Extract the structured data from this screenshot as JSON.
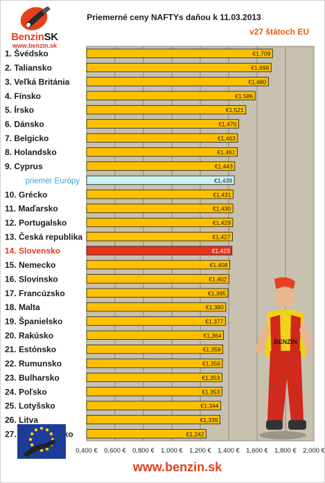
{
  "header": {
    "logo_name_a": "Benzin",
    "logo_name_b": "SK",
    "logo_url": "www.benzin.sk",
    "title": "Priemerné ceny NAFTYs daňou k 11.03.2013",
    "subtitle": "v27 štátoch EU"
  },
  "footer": {
    "url": "www.benzin.sk"
  },
  "colors": {
    "bar": "#ffc000",
    "average_bar": "#ccf2f2",
    "highlight_bar": "#e8341c",
    "plot_bg": "#c8c1b0",
    "average_label": "#3aa0d8",
    "highlight_label": "#e8341c"
  },
  "icons": {
    "flag": "eu-flag-fuel-nozzle-icon",
    "mascot": "mechanic-mascot-icon"
  },
  "chart_data": {
    "type": "bar",
    "orientation": "horizontal",
    "title": "Priemerné ceny NAFTYs daňou k 11.03.2013",
    "subtitle": "v27 štátoch EU",
    "categories": [
      "1. Švédsko",
      "2. Taliansko",
      "3. Veľká Británia",
      "4. Fínsko",
      "5. Írsko",
      "6. Dánsko",
      "7. Belgicko",
      "8. Holandsko",
      "9. Cyprus",
      "priemer Európy",
      "10. Grécko",
      "11. Maďarsko",
      "12. Portugalsko",
      "13. Česká republika",
      "14. Slovensko",
      "15. Nemecko",
      "16. Slovinsko",
      "17. Francúzsko",
      "18. Malta",
      "19. Španielsko",
      "20. Rakúsko",
      "21. Estónsko",
      "22. Rumunsko",
      "23. Bulharsko",
      "24. Poľsko",
      "25. Lotyšsko",
      "26. Litva",
      "27. Luxembursko"
    ],
    "values": [
      1.709,
      1.699,
      1.68,
      1.586,
      1.521,
      1.47,
      1.463,
      1.461,
      1.443,
      1.439,
      1.431,
      1.43,
      1.429,
      1.427,
      1.423,
      1.408,
      1.402,
      1.395,
      1.38,
      1.377,
      1.364,
      1.359,
      1.356,
      1.353,
      1.353,
      1.344,
      1.339,
      1.242
    ],
    "value_labels": [
      "€1,709",
      "€1,699",
      "€1,680",
      "€1,586",
      "€1,521",
      "€1,470",
      "€1,463",
      "€1,461",
      "€1,443",
      "€1,439",
      "€1,431",
      "€1,430",
      "€1,429",
      "€1,427",
      "€1,423",
      "€1,408",
      "€1,402",
      "€1,395",
      "€1,380",
      "€1,377",
      "€1,364",
      "€1,359",
      "€1,356",
      "€1,353",
      "€1,353",
      "€1,344",
      "€1,339",
      "€1,242"
    ],
    "average_category": "priemer Európy",
    "highlight_category": "14. Slovensko",
    "xlim": [
      0.4,
      2.0
    ],
    "x_ticks": [
      0.4,
      0.6,
      0.8,
      1.0,
      1.2,
      1.4,
      1.6,
      1.8,
      2.0
    ],
    "x_tick_labels": [
      "0,400 €",
      "0,600 €",
      "0,800 €",
      "1,000 €",
      "1,200 €",
      "1,400 €",
      "1,600 €",
      "1,800 €",
      "2,000 €"
    ],
    "grid": "vertical",
    "xlabel": "",
    "ylabel": ""
  }
}
